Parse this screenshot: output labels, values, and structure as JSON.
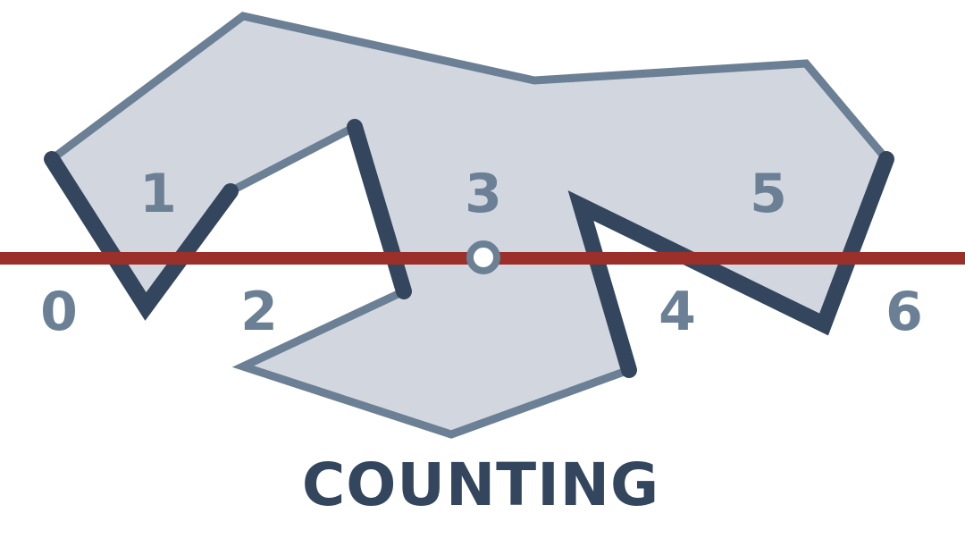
{
  "title": "COUNTING",
  "region_labels": [
    "0",
    "1",
    "2",
    "3",
    "4",
    "5",
    "6"
  ],
  "colors": {
    "background": "#ffffff",
    "polygon_fill": "#d2d7df",
    "polygon_outline": "#6b7f95",
    "crossing_edges": "#34465e",
    "scan_line": "#9b2f2a",
    "label_color": "#6b7f95",
    "title_color": "#34465e",
    "point_fill": "#ffffff"
  }
}
